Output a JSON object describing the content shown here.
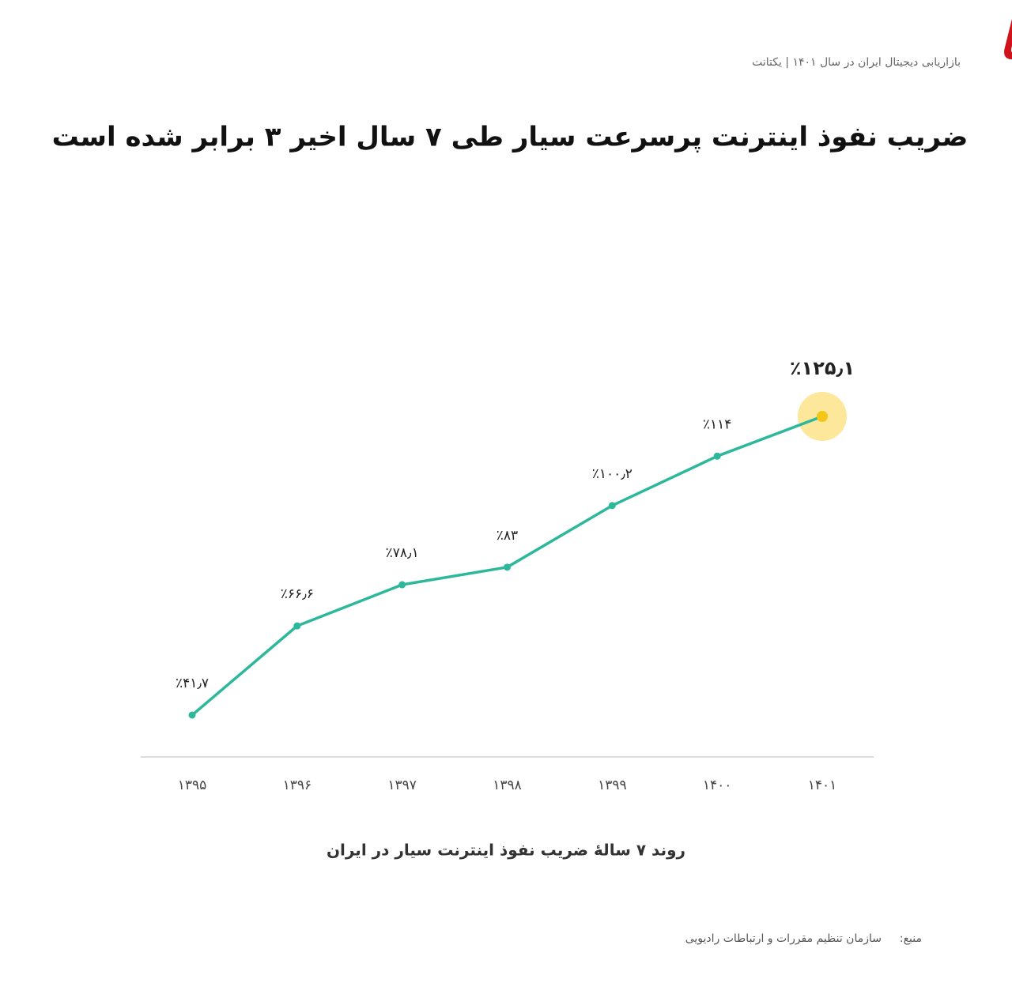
{
  "header": {
    "logo": "رکنا",
    "subtitle": "بازاریابی دیجیتال ایران در سال ۱۴۰۱ | یکتانت"
  },
  "chart_data": {
    "type": "line",
    "title": "ضریب نفوذ اینترنت پرسرعت سیار طی ۷ سال اخیر ۳ برابر شده است",
    "caption": "روند ۷ سالهٔ ضریب نفوذ اینترنت سیار در ایران",
    "categories": [
      "۱۳۹۵",
      "۱۳۹۶",
      "۱۳۹۷",
      "۱۳۹۸",
      "۱۳۹۹",
      "۱۴۰۰",
      "۱۴۰۱"
    ],
    "values": [
      41.7,
      66.6,
      78.1,
      83,
      100.2,
      114,
      125.1
    ],
    "value_labels": [
      "٪۴۱٫۷",
      "٪۶۶٫۶",
      "٪۷۸٫۱",
      "٪۸۳",
      "٪۱۰۰٫۲",
      "٪۱۱۴",
      "٪۱۲۵٫۱"
    ],
    "color": "#2db89c"
  },
  "footer": {
    "source_label": "منبع:",
    "source": "سازمان تنظیم مقررات و ارتباطات رادیویی"
  }
}
